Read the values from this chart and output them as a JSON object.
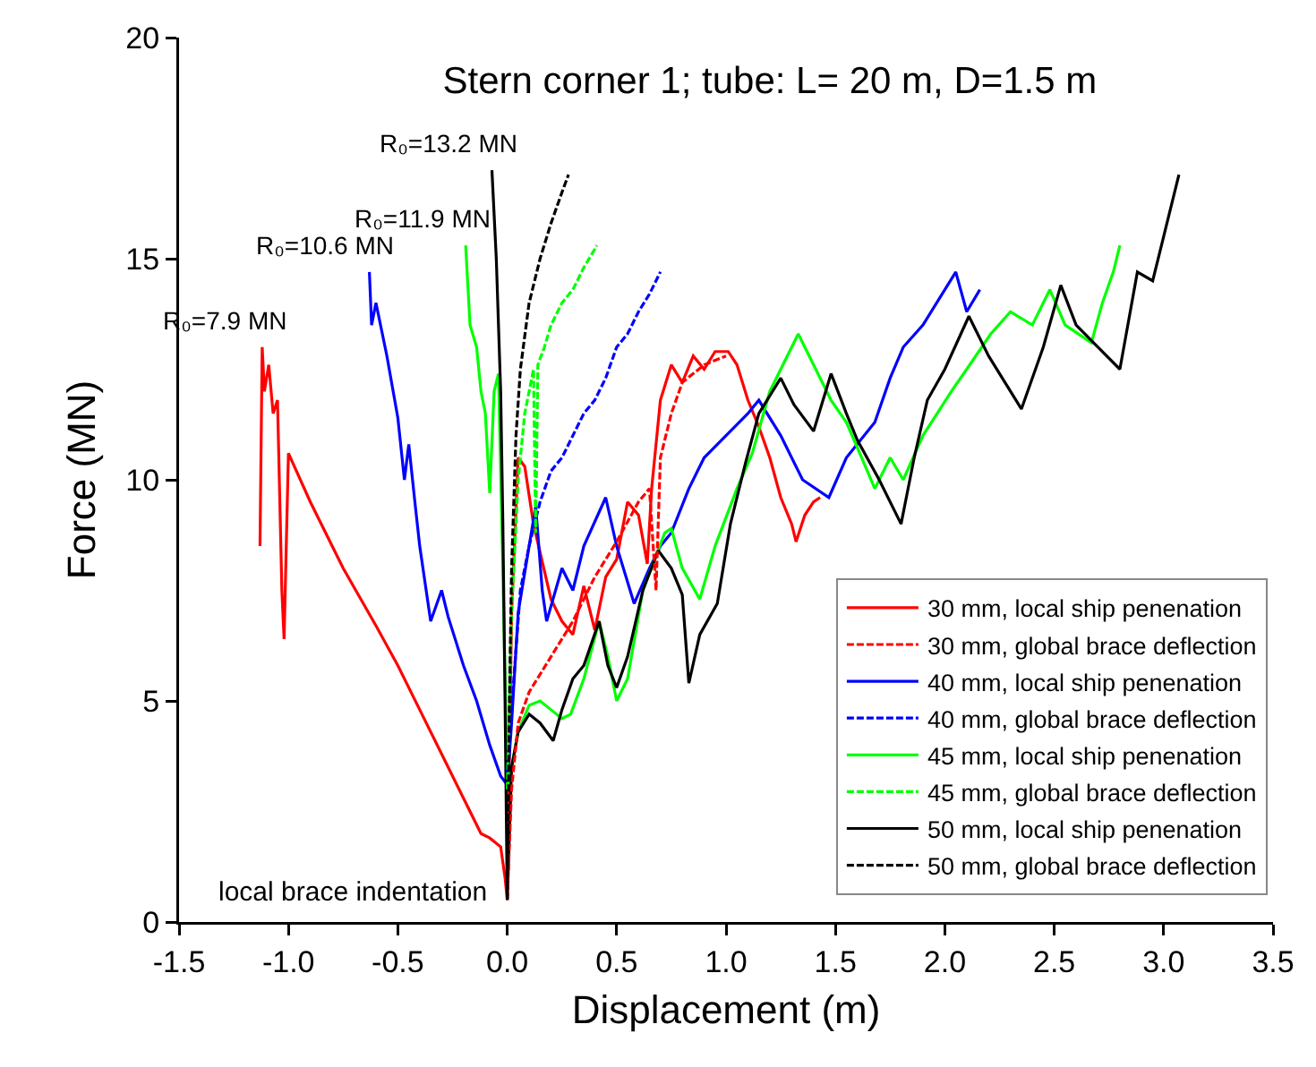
{
  "chart_data": {
    "type": "line",
    "title": "Stern corner 1; tube: L= 20 m, D=1.5 m",
    "xlabel": "Displacement (m)",
    "ylabel": "Force (MN)",
    "xlim": [
      -1.5,
      3.5
    ],
    "xticks": [
      -1.5,
      {
        "value": -1,
        "label": "-1.0"
      },
      -0.5,
      {
        "value": 0,
        "label": "0.0"
      },
      0.5,
      {
        "value": 1,
        "label": "1.0"
      },
      1.5,
      {
        "value": 2,
        "label": "2.0"
      },
      2.5,
      {
        "value": 3,
        "label": "3.0"
      },
      3.5
    ],
    "ylim": [
      0,
      20
    ],
    "yticks": [
      0,
      5,
      10,
      15,
      20
    ],
    "legend": "bottom right",
    "annotations": [
      {
        "text": "R₀=7.9 MN",
        "x": -1.12,
        "y": 13.0
      },
      {
        "text": "R₀=10.6 MN",
        "x": -0.63,
        "y": 14.7
      },
      {
        "text": "R₀=11.9 MN",
        "x": -0.19,
        "y": 15.3
      },
      {
        "text": "R₀=13.2 MN",
        "x": -0.07,
        "y": 17.0
      },
      "local brace indentation"
    ],
    "series": [
      {
        "name": "30 mm, local ship penenation",
        "color": "#ff0000",
        "line_style": "solid",
        "x": [
          -1.13,
          -1.12,
          -1.11,
          -1.09,
          -1.07,
          -1.05,
          -1.03,
          -1.02,
          -1.0,
          -0.9,
          -0.75,
          -0.6,
          -0.5,
          -0.4,
          -0.3,
          -0.2,
          -0.12,
          -0.08,
          -0.03,
          -0.01,
          0,
          0.02,
          0.05,
          0.08,
          0.12,
          0.2,
          0.25,
          0.3,
          0.35,
          0.4,
          0.45,
          0.5,
          0.55,
          0.6,
          0.64,
          0.66,
          0.7,
          0.75,
          0.8,
          0.85,
          0.9,
          0.95,
          1.01,
          1.05,
          1.1,
          1.15,
          1.2,
          1.25,
          1.3,
          1.32,
          1.36,
          1.4,
          1.43
        ],
        "values": [
          8.5,
          13.0,
          12.0,
          12.6,
          11.5,
          11.8,
          7.5,
          6.4,
          10.6,
          9.5,
          8.0,
          6.7,
          5.8,
          4.8,
          3.8,
          2.8,
          2.0,
          1.9,
          1.7,
          1.0,
          0.5,
          7.0,
          10.5,
          10.3,
          9.0,
          7.3,
          6.8,
          6.5,
          7.6,
          6.6,
          7.8,
          8.2,
          9.5,
          9.2,
          8.1,
          9.8,
          11.8,
          12.6,
          12.2,
          12.8,
          12.5,
          12.9,
          12.9,
          12.6,
          11.8,
          11.2,
          10.5,
          9.6,
          9.0,
          8.6,
          9.2,
          9.5,
          9.6
        ]
      },
      {
        "name": "30 mm, global brace deflection",
        "color": "#ff0000",
        "line_style": "dashed",
        "x": [
          0,
          0.02,
          0.05,
          0.1,
          0.2,
          0.3,
          0.4,
          0.5,
          0.6,
          0.65,
          0.68,
          0.7,
          0.75,
          0.8,
          0.9,
          1.0
        ],
        "values": [
          0.5,
          3.0,
          4.5,
          5.2,
          6.0,
          6.8,
          7.8,
          8.6,
          9.5,
          9.8,
          7.5,
          10.5,
          11.5,
          12.2,
          12.6,
          12.8
        ]
      },
      {
        "name": "40 mm, local ship penenation",
        "color": "#0000ff",
        "line_style": "solid",
        "x": [
          -0.63,
          -0.62,
          -0.6,
          -0.55,
          -0.5,
          -0.47,
          -0.45,
          -0.42,
          -0.4,
          -0.35,
          -0.3,
          -0.27,
          -0.2,
          -0.14,
          -0.08,
          -0.03,
          0,
          0.02,
          0.05,
          0.1,
          0.13,
          0.16,
          0.18,
          0.25,
          0.3,
          0.35,
          0.45,
          0.5,
          0.58,
          0.65,
          0.7,
          0.75,
          0.83,
          0.9,
          1.0,
          1.1,
          1.15,
          1.25,
          1.35,
          1.47,
          1.55,
          1.68,
          1.75,
          1.81,
          1.9,
          2.05,
          2.1,
          2.16
        ],
        "values": [
          14.7,
          13.5,
          14.0,
          12.8,
          11.4,
          10.0,
          10.8,
          9.4,
          8.5,
          6.8,
          7.5,
          6.9,
          5.8,
          5.0,
          4.0,
          3.3,
          3.1,
          4.5,
          7.0,
          8.5,
          9.4,
          7.5,
          6.8,
          8.0,
          7.5,
          8.5,
          9.6,
          8.5,
          7.2,
          8.0,
          8.5,
          8.8,
          9.8,
          10.5,
          11.0,
          11.5,
          11.8,
          11.0,
          10.0,
          9.6,
          10.5,
          11.3,
          12.3,
          13.0,
          13.5,
          14.7,
          13.8,
          14.3
        ]
      },
      {
        "name": "40 mm, global brace deflection",
        "color": "#0000ff",
        "line_style": "dashed",
        "x": [
          0,
          0.03,
          0.06,
          0.1,
          0.15,
          0.2,
          0.25,
          0.3,
          0.35,
          0.4,
          0.45,
          0.5,
          0.55,
          0.6,
          0.65,
          0.7
        ],
        "values": [
          3.4,
          5.5,
          7.5,
          8.5,
          9.5,
          10.2,
          10.5,
          11.0,
          11.5,
          11.8,
          12.3,
          13.0,
          13.3,
          13.8,
          14.2,
          14.7
        ]
      },
      {
        "name": "45 mm, local ship penenation",
        "color": "#00ff00",
        "line_style": "solid",
        "x": [
          -0.19,
          -0.17,
          -0.14,
          -0.12,
          -0.1,
          -0.08,
          -0.06,
          -0.04,
          -0.02,
          0,
          0.02,
          0.05,
          0.1,
          0.15,
          0.2,
          0.25,
          0.29,
          0.35,
          0.42,
          0.46,
          0.5,
          0.55,
          0.62,
          0.72,
          0.75,
          0.8,
          0.88,
          0.95,
          1.05,
          1.12,
          1.2,
          1.33,
          1.4,
          1.48,
          1.55,
          1.62,
          1.68,
          1.75,
          1.81,
          1.9,
          2.03,
          2.1,
          2.21,
          2.3,
          2.4,
          2.48,
          2.55,
          2.67,
          2.72,
          2.77,
          2.8
        ],
        "values": [
          15.3,
          13.5,
          13.0,
          12.0,
          11.5,
          9.7,
          12.0,
          12.4,
          8.0,
          3.0,
          3.5,
          4.3,
          4.9,
          5.0,
          4.8,
          4.6,
          4.7,
          5.5,
          6.8,
          6.0,
          5.0,
          5.5,
          7.5,
          8.8,
          8.9,
          8.0,
          7.3,
          8.5,
          9.8,
          10.6,
          12.0,
          13.3,
          12.6,
          11.8,
          11.3,
          10.5,
          9.8,
          10.5,
          10.0,
          11.0,
          12.0,
          12.5,
          13.3,
          13.8,
          13.5,
          14.3,
          13.5,
          13.1,
          14.0,
          14.7,
          15.3
        ]
      },
      {
        "name": "45 mm, global brace deflection",
        "color": "#00ff00",
        "line_style": "dashed",
        "x": [
          0,
          0.02,
          0.05,
          0.08,
          0.1,
          0.12,
          0.13,
          0.14,
          0.17,
          0.2,
          0.25,
          0.3,
          0.35,
          0.41
        ],
        "values": [
          3.0,
          7.0,
          10.0,
          11.5,
          12.0,
          12.5,
          8.8,
          12.6,
          13.0,
          13.5,
          14.0,
          14.3,
          14.8,
          15.3
        ]
      },
      {
        "name": "50 mm, local ship penenation",
        "color": "#000000",
        "line_style": "solid",
        "x": [
          -0.07,
          -0.05,
          -0.03,
          -0.02,
          -0.01,
          0,
          0.02,
          0.05,
          0.1,
          0.15,
          0.21,
          0.25,
          0.3,
          0.35,
          0.42,
          0.46,
          0.5,
          0.55,
          0.62,
          0.69,
          0.75,
          0.8,
          0.83,
          0.88,
          0.96,
          1.02,
          1.09,
          1.15,
          1.25,
          1.31,
          1.4,
          1.48,
          1.55,
          1.6,
          1.7,
          1.8,
          1.86,
          1.92,
          2.0,
          2.11,
          2.2,
          2.35,
          2.45,
          2.53,
          2.6,
          2.7,
          2.8,
          2.88,
          2.95,
          3.0,
          3.07
        ],
        "values": [
          17.0,
          15.0,
          12.0,
          9.0,
          5.0,
          0.5,
          3.5,
          4.3,
          4.7,
          4.5,
          4.1,
          4.8,
          5.5,
          5.8,
          6.8,
          5.8,
          5.3,
          6.0,
          7.5,
          8.4,
          8.0,
          7.4,
          5.4,
          6.5,
          7.2,
          9.0,
          10.4,
          11.5,
          12.3,
          11.7,
          11.1,
          12.4,
          11.5,
          10.9,
          10.0,
          9.0,
          10.5,
          11.8,
          12.5,
          13.7,
          12.8,
          11.6,
          13.0,
          14.4,
          13.5,
          13.0,
          12.5,
          14.7,
          14.5,
          15.5,
          16.9
        ]
      },
      {
        "name": "50 mm, global brace deflection",
        "color": "#000000",
        "line_style": "dashed",
        "x": [
          0,
          0.01,
          0.02,
          0.04,
          0.06,
          0.1,
          0.15,
          0.2,
          0.25,
          0.28
        ],
        "values": [
          0.5,
          5.0,
          8.0,
          11.0,
          12.5,
          14.0,
          15.0,
          15.8,
          16.5,
          16.9
        ]
      }
    ]
  }
}
